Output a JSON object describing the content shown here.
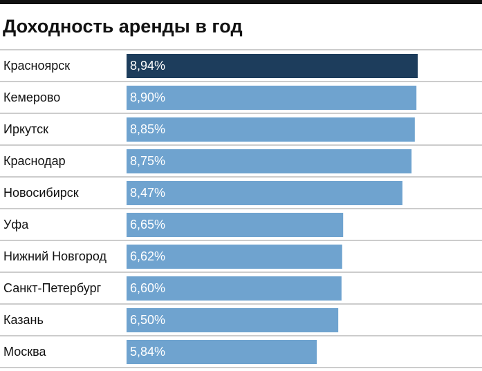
{
  "chart_data": {
    "type": "hbar",
    "title": "Доходность аренды в год",
    "categories": [
      "Красноярск",
      "Кемерово",
      "Иркутск",
      "Краснодар",
      "Новосибирск",
      "Уфа",
      "Нижний Новгород",
      "Санкт-Петербург",
      "Казань",
      "Москва"
    ],
    "values": [
      8.94,
      8.9,
      8.85,
      8.75,
      8.47,
      6.65,
      6.62,
      6.6,
      6.5,
      5.84
    ],
    "value_labels": [
      "8,94%",
      "8,90%",
      "8,85%",
      "8,75%",
      "8,47%",
      "6,65%",
      "6,62%",
      "6,60%",
      "6,50%",
      "5,84%"
    ],
    "colors": [
      "#1d3d5c",
      "#6fa3cf",
      "#6fa3cf",
      "#6fa3cf",
      "#6fa3cf",
      "#6fa3cf",
      "#6fa3cf",
      "#6fa3cf",
      "#6fa3cf",
      "#6fa3cf"
    ],
    "xlim": [
      0,
      10
    ]
  }
}
